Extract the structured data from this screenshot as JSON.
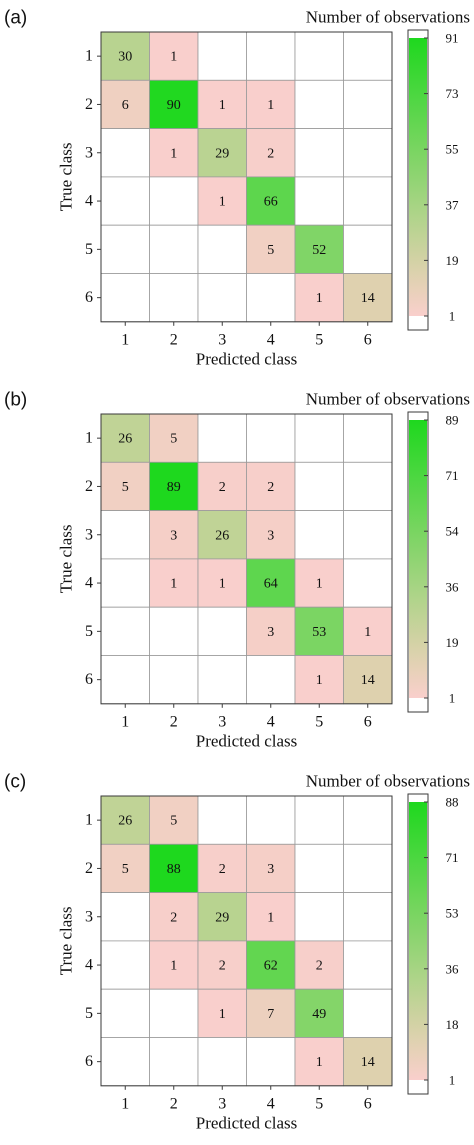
{
  "chart_data": [
    {
      "type": "heatmap",
      "panel_label": "(a)",
      "legend_title": "Number of observations",
      "xlabel": "Predicted class",
      "ylabel": "True class",
      "x_categories": [
        "1",
        "2",
        "3",
        "4",
        "5",
        "6"
      ],
      "y_categories": [
        "1",
        "2",
        "3",
        "4",
        "5",
        "6"
      ],
      "matrix": [
        [
          30,
          1,
          null,
          null,
          null,
          null
        ],
        [
          6,
          90,
          1,
          1,
          null,
          null
        ],
        [
          null,
          1,
          29,
          2,
          null,
          null
        ],
        [
          null,
          null,
          1,
          66,
          null,
          null
        ],
        [
          null,
          null,
          null,
          5,
          52,
          null
        ],
        [
          null,
          null,
          null,
          null,
          1,
          14
        ]
      ],
      "colorbar": {
        "min": 1,
        "max": 91,
        "ticks": [
          "91",
          "73",
          "55",
          "37",
          "19",
          "1"
        ]
      }
    },
    {
      "type": "heatmap",
      "panel_label": "(b)",
      "legend_title": "Number of observations",
      "xlabel": "Predicted class",
      "ylabel": "True class",
      "x_categories": [
        "1",
        "2",
        "3",
        "4",
        "5",
        "6"
      ],
      "y_categories": [
        "1",
        "2",
        "3",
        "4",
        "5",
        "6"
      ],
      "matrix": [
        [
          26,
          5,
          null,
          null,
          null,
          null
        ],
        [
          5,
          89,
          2,
          2,
          null,
          null
        ],
        [
          null,
          3,
          26,
          3,
          null,
          null
        ],
        [
          null,
          1,
          1,
          64,
          1,
          null
        ],
        [
          null,
          null,
          null,
          3,
          53,
          1
        ],
        [
          null,
          null,
          null,
          null,
          1,
          14
        ]
      ],
      "colorbar": {
        "min": 1,
        "max": 89,
        "ticks": [
          "89",
          "71",
          "54",
          "36",
          "19",
          "1"
        ]
      }
    },
    {
      "type": "heatmap",
      "panel_label": "(c)",
      "legend_title": "Number of observations",
      "xlabel": "Predicted class",
      "ylabel": "True class",
      "x_categories": [
        "1",
        "2",
        "3",
        "4",
        "5",
        "6"
      ],
      "y_categories": [
        "1",
        "2",
        "3",
        "4",
        "5",
        "6"
      ],
      "matrix": [
        [
          26,
          5,
          null,
          null,
          null,
          null
        ],
        [
          5,
          88,
          2,
          3,
          null,
          null
        ],
        [
          null,
          2,
          29,
          1,
          null,
          null
        ],
        [
          null,
          1,
          2,
          62,
          2,
          null
        ],
        [
          null,
          null,
          1,
          7,
          49,
          null
        ],
        [
          null,
          null,
          null,
          null,
          1,
          14
        ]
      ],
      "colorbar": {
        "min": 1,
        "max": 88,
        "ticks": [
          "88",
          "71",
          "53",
          "36",
          "18",
          "1"
        ]
      }
    }
  ],
  "colors": {
    "low": "#f9cfcc",
    "mid": "#d8d2a8",
    "high": "#1ed81e",
    "grid": "#9a9a9a",
    "frame": "#3a3a3a"
  }
}
